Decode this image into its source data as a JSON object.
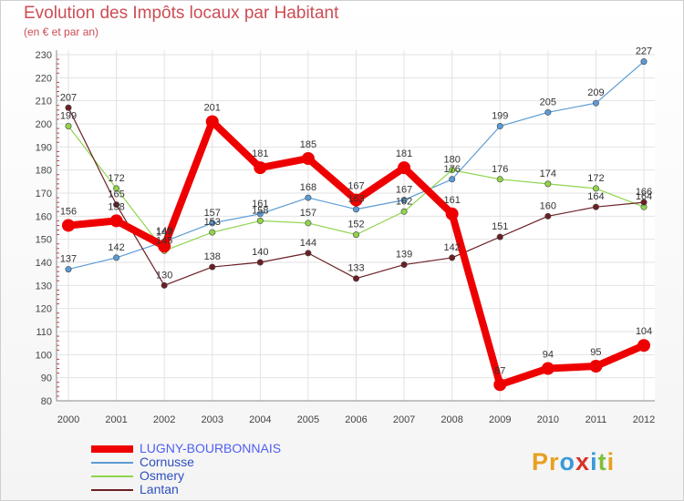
{
  "title": "Evolution des Impôts locaux par Habitant",
  "subtitle": "(en € et par an)",
  "logo_letters": [
    "P",
    "r",
    "o",
    "x",
    "i",
    "t",
    "i"
  ],
  "logo_colors": [
    "#e8a020",
    "#e8a020",
    "#3a9ad9",
    "#d9322a",
    "#3a9ad9",
    "#7cbf3a",
    "#e8a020"
  ],
  "chart_data": {
    "type": "line",
    "title": "Evolution des Impôts locaux par Habitant",
    "subtitle": "(en € et par an)",
    "xlabel": "",
    "ylabel": "",
    "x": [
      "2000",
      "2001",
      "2002",
      "2003",
      "2004",
      "2005",
      "2006",
      "2007",
      "2008",
      "2009",
      "2010",
      "2011",
      "2012"
    ],
    "ylim": [
      80,
      230
    ],
    "yticks": [
      80,
      90,
      100,
      110,
      120,
      130,
      140,
      150,
      160,
      170,
      180,
      190,
      200,
      210,
      220,
      230
    ],
    "grid": true,
    "legend_position": "bottom-left",
    "series": [
      {
        "name": "LUGNY-BOURBONNAIS",
        "color": "#ee0000",
        "text_color": "#4f5ff2",
        "thick": true,
        "values": [
          156,
          158,
          147,
          201,
          181,
          185,
          167,
          181,
          161,
          87,
          94,
          95,
          104
        ]
      },
      {
        "name": "Cornusse",
        "color": "#5b9bd5",
        "text_color": "#2e4fbf",
        "values": [
          137,
          142,
          149,
          157,
          161,
          168,
          163,
          167,
          176,
          199,
          205,
          209,
          227
        ]
      },
      {
        "name": "Osmery",
        "color": "#8fd44d",
        "text_color": "#2e4fbf",
        "values": [
          199,
          172,
          145,
          153,
          158,
          157,
          152,
          162,
          180,
          176,
          174,
          172,
          164
        ]
      },
      {
        "name": "Lantan",
        "color": "#6b1f25",
        "text_color": "#2e4fbf",
        "values": [
          207,
          165,
          130,
          138,
          140,
          144,
          133,
          139,
          142,
          151,
          160,
          164,
          166
        ]
      }
    ]
  }
}
